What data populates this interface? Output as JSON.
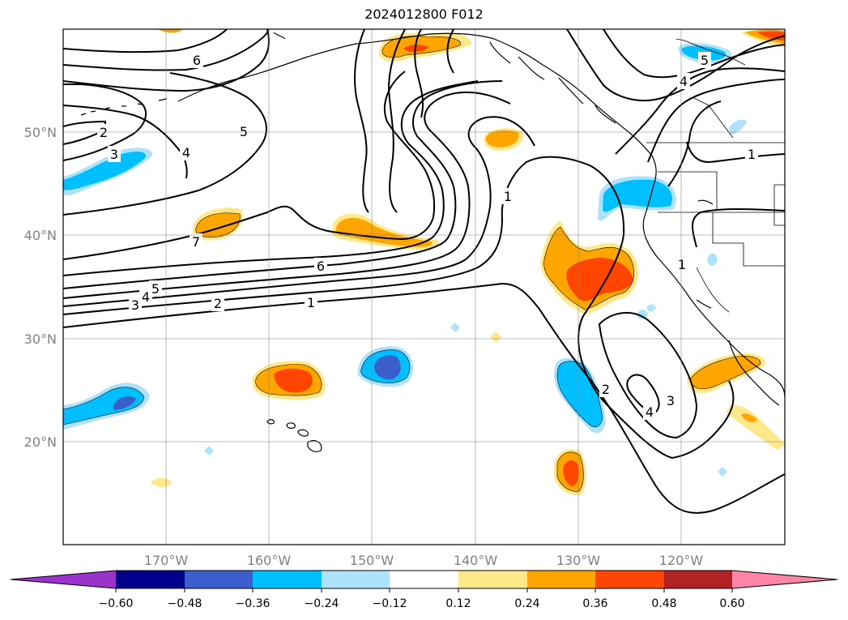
{
  "figure": {
    "title": "2024012800 F012"
  },
  "map": {
    "lon_range": [
      -180,
      -110
    ],
    "lat_range": [
      10,
      60
    ],
    "longitude_ticks": [
      "170°W",
      "160°W",
      "150°W",
      "140°W",
      "130°W",
      "120°W"
    ],
    "latitude_ticks": [
      "50°N",
      "40°N",
      "30°N",
      "20°N"
    ],
    "gridlines": true
  },
  "colorbar": {
    "orientation": "horizontal",
    "extend": "both",
    "tick_labels": [
      "−0.60",
      "−0.48",
      "−0.36",
      "−0.24",
      "−0.12",
      "0.12",
      "0.24",
      "0.36",
      "0.48",
      "0.60"
    ],
    "colors": [
      "#9933cc",
      "#00008b",
      "#3a5fcd",
      "#00bfff",
      "#aee2fa",
      "#ffffff",
      "#ffe88a",
      "#ffa500",
      "#ff4500",
      "#b22222",
      "#ff85a8"
    ]
  },
  "contour_labels": [
    "1",
    "2",
    "3",
    "4",
    "5",
    "6",
    "7"
  ]
}
